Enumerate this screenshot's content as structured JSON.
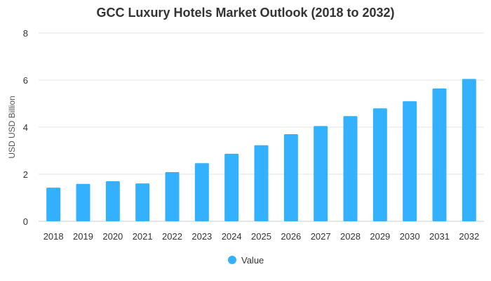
{
  "chart_data": {
    "type": "bar",
    "title": "GCC Luxury Hotels Market Outlook (2018 to 2032)",
    "xlabel": "",
    "ylabel": "USD USD Billion",
    "ylim": [
      0,
      8
    ],
    "yticks": [
      0,
      2,
      4,
      6,
      8
    ],
    "grid": true,
    "legend_position": "bottom",
    "categories": [
      "2018",
      "2019",
      "2020",
      "2021",
      "2022",
      "2023",
      "2024",
      "2025",
      "2026",
      "2027",
      "2028",
      "2029",
      "2030",
      "2031",
      "2032"
    ],
    "series": [
      {
        "name": "Value",
        "color": "#33b1ff",
        "values": [
          1.43,
          1.59,
          1.7,
          1.61,
          2.09,
          2.47,
          2.87,
          3.23,
          3.7,
          4.05,
          4.47,
          4.8,
          5.1,
          5.64,
          6.05
        ]
      }
    ]
  }
}
